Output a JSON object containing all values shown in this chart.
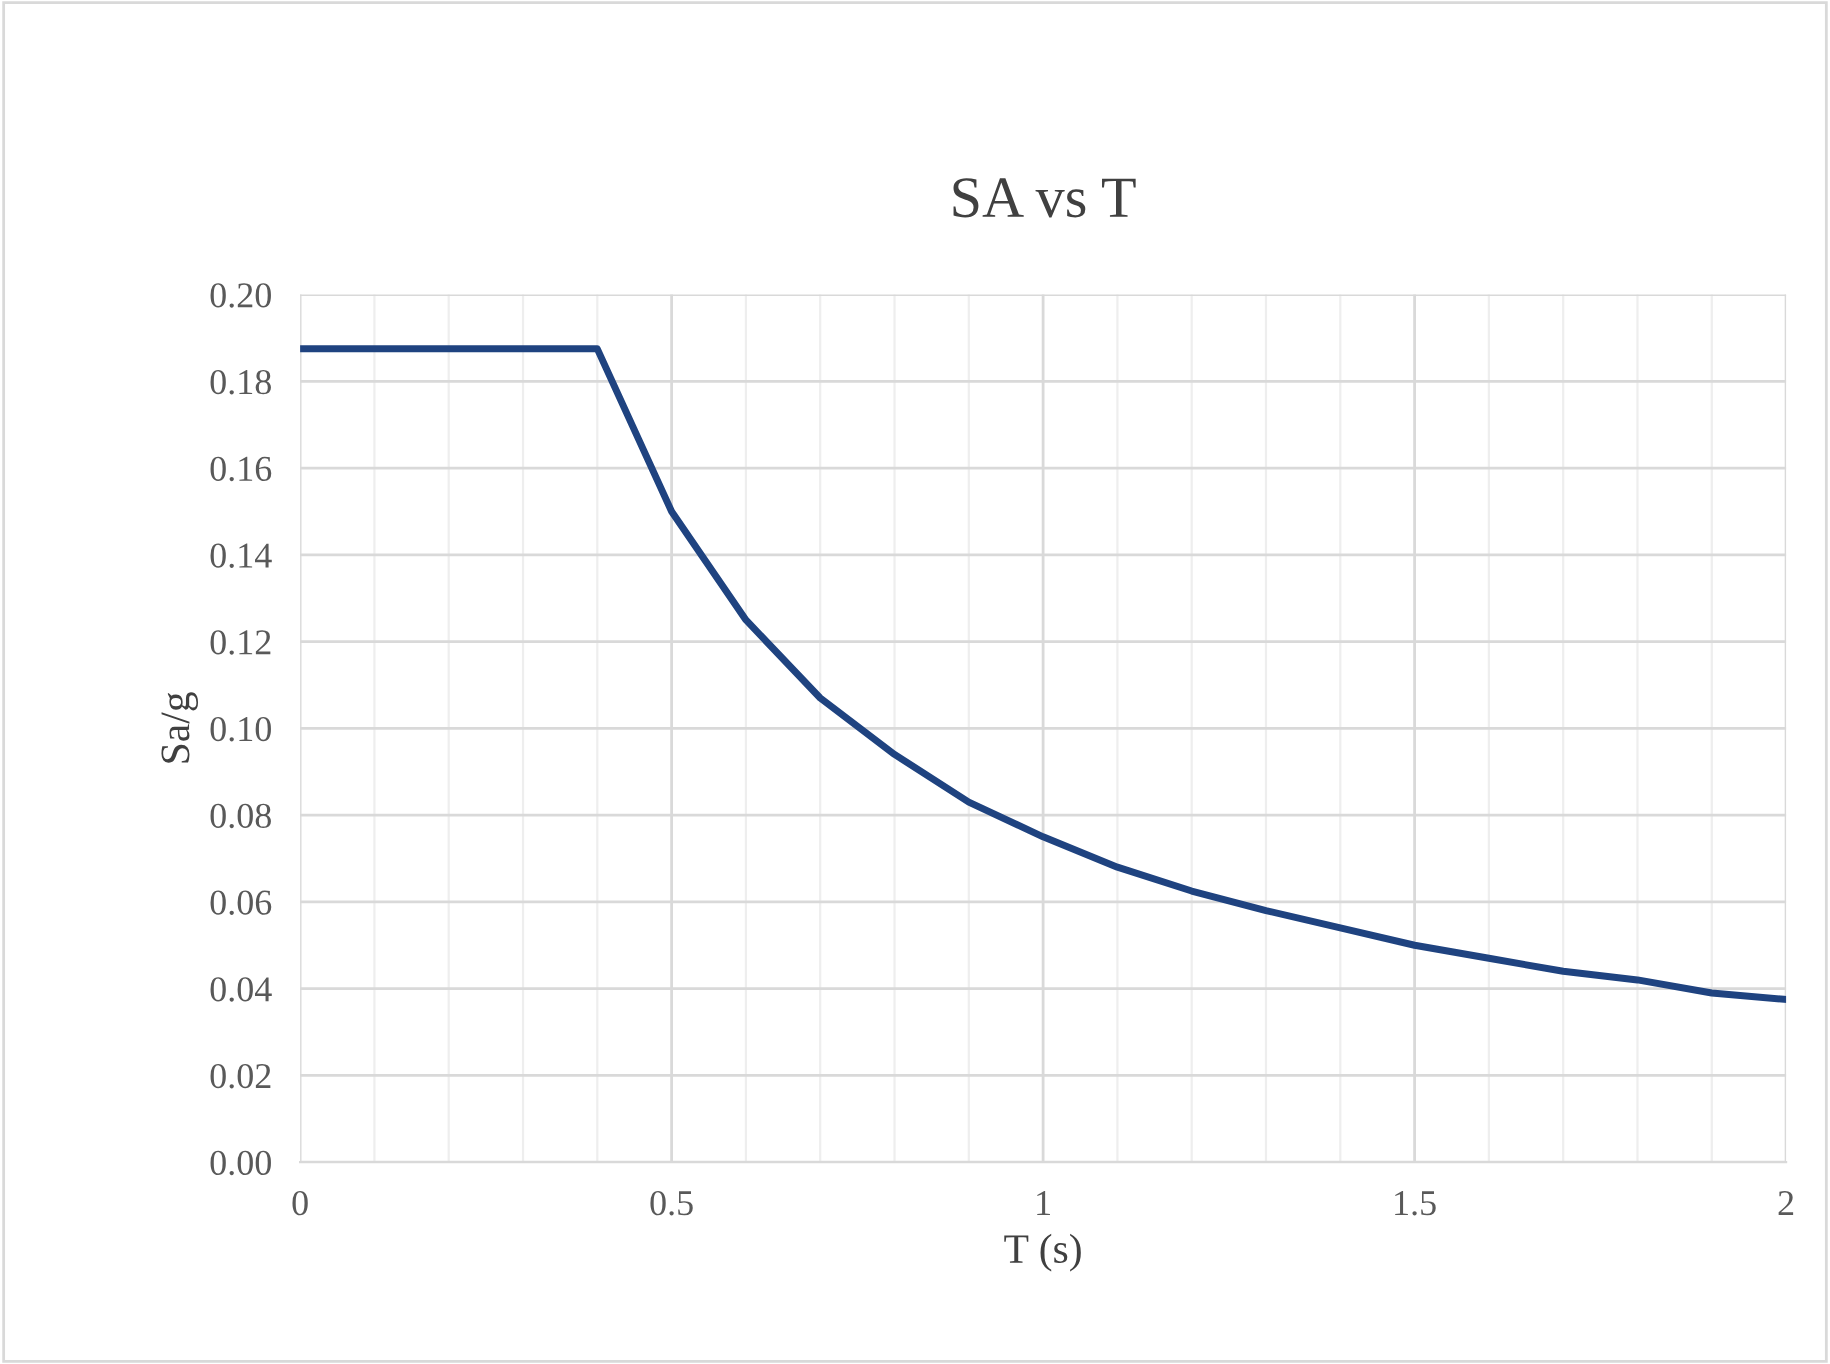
{
  "chart_data": {
    "type": "line",
    "title": "SA vs T",
    "xlabel": "T (s)",
    "ylabel": "Sa/g",
    "x": [
      0,
      0.4,
      0.5,
      0.6,
      0.7,
      0.8,
      0.9,
      1.0,
      1.1,
      1.2,
      1.3,
      1.4,
      1.5,
      1.6,
      1.7,
      1.8,
      1.9,
      2.0
    ],
    "series": [
      {
        "color": "#1f4380",
        "values": [
          0.1875,
          0.1875,
          0.15,
          0.125,
          0.107,
          0.094,
          0.083,
          0.075,
          0.068,
          0.0625,
          0.058,
          0.054,
          0.05,
          0.047,
          0.044,
          0.042,
          0.039,
          0.0375
        ]
      }
    ],
    "xlim": [
      0,
      2
    ],
    "ylim": [
      0,
      0.2
    ],
    "xticks": [
      0,
      {
        "value": 0.1,
        "label": null
      },
      {
        "value": 0.2,
        "label": null
      },
      {
        "value": 0.3,
        "label": null
      },
      {
        "value": 0.4,
        "label": null
      },
      0.5,
      {
        "value": 0.6,
        "label": null
      },
      {
        "value": 0.7,
        "label": null
      },
      {
        "value": 0.8,
        "label": null
      },
      {
        "value": 0.9,
        "label": null
      },
      1,
      {
        "value": 1.1,
        "label": null
      },
      {
        "value": 1.2,
        "label": null
      },
      {
        "value": 1.3,
        "label": null
      },
      {
        "value": 1.4,
        "label": null
      },
      1.5,
      {
        "value": 1.6,
        "label": null
      },
      {
        "value": 1.7,
        "label": null
      },
      {
        "value": 1.8,
        "label": null
      },
      {
        "value": 1.9,
        "label": null
      },
      2
    ],
    "yticks": [
      {
        "value": 0,
        "label": "0.00"
      },
      {
        "value": 0.02,
        "label": "0.02"
      },
      {
        "value": 0.04,
        "label": "0.04"
      },
      {
        "value": 0.06,
        "label": "0.06"
      },
      {
        "value": 0.08,
        "label": "0.08"
      },
      {
        "value": 0.1,
        "label": "0.10"
      },
      {
        "value": 0.12,
        "label": "0.12"
      },
      {
        "value": 0.14,
        "label": "0.14"
      },
      {
        "value": 0.16,
        "label": "0.16"
      },
      {
        "value": 0.18,
        "label": "0.18"
      },
      {
        "value": 0.2,
        "label": "0.20"
      }
    ],
    "grid": true,
    "marker": "none",
    "line_style": "solid"
  }
}
